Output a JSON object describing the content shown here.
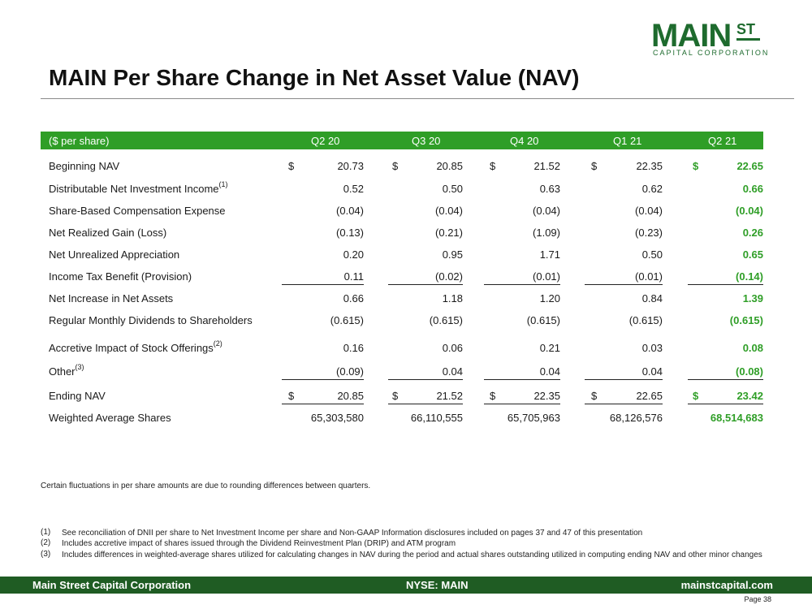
{
  "logo": {
    "main": "MAIN",
    "st": "ST",
    "sub": "CAPITAL CORPORATION"
  },
  "title": "MAIN Per Share Change in Net Asset Value (NAV)",
  "table": {
    "unit_label": "($ per share)",
    "columns": [
      "Q2 20",
      "Q3 20",
      "Q4 20",
      "Q1 21",
      "Q2 21"
    ],
    "rows": [
      {
        "label": "Beginning NAV",
        "sup": "",
        "currency": "$",
        "values": [
          "20.73",
          "20.85",
          "21.52",
          "22.35",
          "22.65"
        ]
      },
      {
        "label": "Distributable Net Investment Income",
        "sup": "(1)",
        "currency": "",
        "values": [
          "0.52",
          "0.50",
          "0.63",
          "0.62",
          "0.66"
        ]
      },
      {
        "label": "Share-Based Compensation Expense",
        "sup": "",
        "currency": "",
        "values": [
          "(0.04)",
          "(0.04)",
          "(0.04)",
          "(0.04)",
          "(0.04)"
        ]
      },
      {
        "label": "Net Realized Gain (Loss)",
        "sup": "",
        "currency": "",
        "values": [
          "(0.13)",
          "(0.21)",
          "(1.09)",
          "(0.23)",
          "0.26"
        ]
      },
      {
        "label": "Net Unrealized Appreciation",
        "sup": "",
        "currency": "",
        "values": [
          "0.20",
          "0.95",
          "1.71",
          "0.50",
          "0.65"
        ]
      },
      {
        "label": "Income Tax Benefit (Provision)",
        "sup": "",
        "currency": "",
        "values": [
          "0.11",
          "(0.02)",
          "(0.01)",
          "(0.01)",
          "(0.14)"
        ]
      },
      {
        "label": "Net Increase in Net Assets",
        "sup": "",
        "currency": "",
        "values": [
          "0.66",
          "1.18",
          "1.20",
          "0.84",
          "1.39"
        ]
      },
      {
        "label": "Regular Monthly Dividends to Shareholders",
        "sup": "",
        "currency": "",
        "values": [
          "(0.615)",
          "(0.615)",
          "(0.615)",
          "(0.615)",
          "(0.615)"
        ]
      },
      {
        "label": "Accretive Impact of Stock Offerings",
        "sup": "(2)",
        "currency": "",
        "values": [
          "0.16",
          "0.06",
          "0.21",
          "0.03",
          "0.08"
        ]
      },
      {
        "label": "Other",
        "sup": "(3)",
        "currency": "",
        "values": [
          "(0.09)",
          "0.04",
          "0.04",
          "0.04",
          "(0.08)"
        ]
      },
      {
        "label": "Ending NAV",
        "sup": "",
        "currency": "$",
        "values": [
          "20.85",
          "21.52",
          "22.35",
          "22.65",
          "23.42"
        ]
      },
      {
        "label": "Weighted Average Shares",
        "sup": "",
        "currency": "",
        "values": [
          "65,303,580",
          "66,110,555",
          "65,705,963",
          "68,126,576",
          "68,514,683"
        ]
      }
    ]
  },
  "note": "Certain fluctuations in per share amounts are due to rounding differences between quarters.",
  "footnotes": [
    {
      "num": "(1)",
      "text": "See reconciliation of DNII per share to Net Investment Income per share and Non-GAAP Information disclosures included on pages 37 and 47 of this presentation"
    },
    {
      "num": "(2)",
      "text": "Includes accretive impact of shares issued through the Dividend Reinvestment Plan (DRIP) and ATM program"
    },
    {
      "num": "(3)",
      "text": "Includes differences in weighted-average shares utilized for calculating changes in NAV during the period and actual shares outstanding utilized in computing ending NAV and other minor changes"
    }
  ],
  "footer": {
    "left": "Main Street Capital Corporation",
    "center": "NYSE: MAIN",
    "right": "mainstcapital.com"
  },
  "page": "Page  38",
  "colors": {
    "header_green": "#2f9e27",
    "footer_green": "#1f5c23",
    "highlight_green": "#2f9e27"
  }
}
